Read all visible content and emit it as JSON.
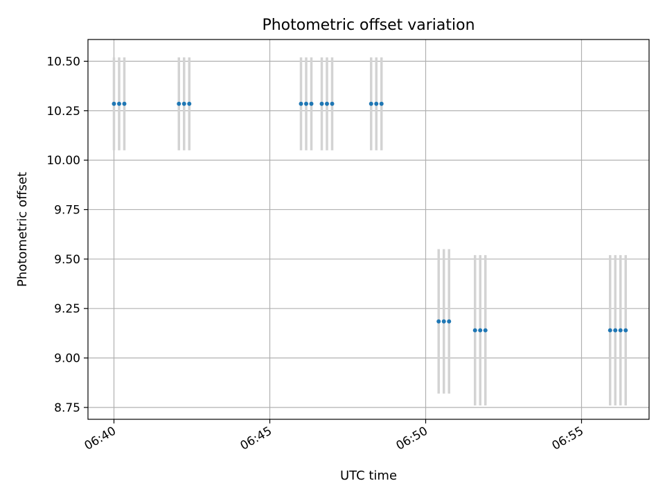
{
  "chart_data": {
    "type": "scatter",
    "title": "Photometric offset variation",
    "xlabel": "UTC time",
    "ylabel": "Photometric offset",
    "x_unit": "minutes",
    "xlim": [
      "06:39:10",
      "06:57:10"
    ],
    "ylim": [
      8.69,
      10.61
    ],
    "grid": true,
    "x_ticks": [
      "06:40",
      "06:45",
      "06:50",
      "06:55"
    ],
    "y_ticks": [
      8.75,
      9.0,
      9.25,
      9.5,
      9.75,
      10.0,
      10.25,
      10.5
    ],
    "y_tick_labels": [
      "8.75",
      "9.00",
      "9.25",
      "9.50",
      "9.75",
      "10.00",
      "10.25",
      "10.50"
    ],
    "series": [
      {
        "color": "#1f77b4",
        "error_color": "#d3d3d3",
        "points": [
          {
            "x": "06:40:00",
            "y": 10.285,
            "yerr": 0.235
          },
          {
            "x": "06:40:10",
            "y": 10.285,
            "yerr": 0.235
          },
          {
            "x": "06:40:20",
            "y": 10.285,
            "yerr": 0.235
          },
          {
            "x": "06:42:05",
            "y": 10.285,
            "yerr": 0.235
          },
          {
            "x": "06:42:15",
            "y": 10.285,
            "yerr": 0.235
          },
          {
            "x": "06:42:25",
            "y": 10.285,
            "yerr": 0.235
          },
          {
            "x": "06:46:00",
            "y": 10.285,
            "yerr": 0.235
          },
          {
            "x": "06:46:10",
            "y": 10.285,
            "yerr": 0.235
          },
          {
            "x": "06:46:20",
            "y": 10.285,
            "yerr": 0.235
          },
          {
            "x": "06:46:40",
            "y": 10.285,
            "yerr": 0.235
          },
          {
            "x": "06:46:50",
            "y": 10.285,
            "yerr": 0.235
          },
          {
            "x": "06:47:00",
            "y": 10.285,
            "yerr": 0.235
          },
          {
            "x": "06:48:15",
            "y": 10.285,
            "yerr": 0.235
          },
          {
            "x": "06:48:25",
            "y": 10.285,
            "yerr": 0.235
          },
          {
            "x": "06:48:35",
            "y": 10.285,
            "yerr": 0.235
          },
          {
            "x": "06:50:25",
            "y": 9.185,
            "yerr": 0.365
          },
          {
            "x": "06:50:35",
            "y": 9.185,
            "yerr": 0.365
          },
          {
            "x": "06:50:45",
            "y": 9.185,
            "yerr": 0.365
          },
          {
            "x": "06:51:35",
            "y": 9.14,
            "yerr": 0.38
          },
          {
            "x": "06:51:45",
            "y": 9.14,
            "yerr": 0.38
          },
          {
            "x": "06:51:55",
            "y": 9.14,
            "yerr": 0.38
          },
          {
            "x": "06:55:55",
            "y": 9.14,
            "yerr": 0.38
          },
          {
            "x": "06:56:05",
            "y": 9.14,
            "yerr": 0.38
          },
          {
            "x": "06:56:15",
            "y": 9.14,
            "yerr": 0.38
          },
          {
            "x": "06:56:25",
            "y": 9.14,
            "yerr": 0.38
          }
        ]
      }
    ]
  }
}
